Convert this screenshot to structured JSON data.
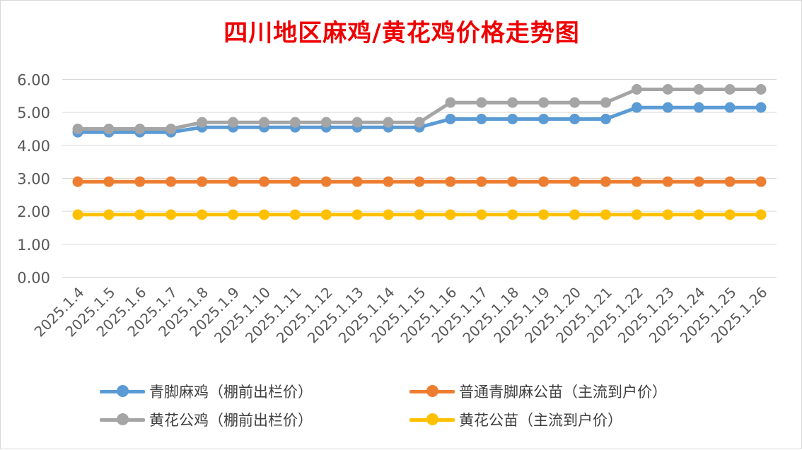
{
  "chart_data": {
    "type": "line",
    "title": "四川地区麻鸡/黄花鸡价格走势图",
    "categories": [
      "2025.1.4",
      "2025.1.5",
      "2025.1.6",
      "2025.1.7",
      "2025.1.8",
      "2025.1.9",
      "2025.1.10",
      "2025.1.11",
      "2025.1.12",
      "2025.1.13",
      "2025.1.14",
      "2025.1.15",
      "2025.1.16",
      "2025.1.17",
      "2025.1.18",
      "2025.1.19",
      "2025.1.20",
      "2025.1.21",
      "2025.1.22",
      "2025.1.23",
      "2025.1.24",
      "2025.1.25",
      "2025.1.26"
    ],
    "yticks": [
      "0.00",
      "1.00",
      "2.00",
      "3.00",
      "4.00",
      "5.00",
      "6.00"
    ],
    "ylim": [
      0,
      6
    ],
    "grid": true,
    "legend_position": "bottom",
    "series": [
      {
        "name": "青脚麻鸡（棚前出栏价）",
        "color": "#5b9bd5",
        "values": [
          4.4,
          4.4,
          4.4,
          4.4,
          4.55,
          4.55,
          4.55,
          4.55,
          4.55,
          4.55,
          4.55,
          4.55,
          4.8,
          4.8,
          4.8,
          4.8,
          4.8,
          4.8,
          5.15,
          5.15,
          5.15,
          5.15,
          5.15
        ]
      },
      {
        "name": "普通青脚麻公苗（主流到户价）",
        "color": "#ed7d31",
        "values": [
          2.9,
          2.9,
          2.9,
          2.9,
          2.9,
          2.9,
          2.9,
          2.9,
          2.9,
          2.9,
          2.9,
          2.9,
          2.9,
          2.9,
          2.9,
          2.9,
          2.9,
          2.9,
          2.9,
          2.9,
          2.9,
          2.9,
          2.9
        ]
      },
      {
        "name": "黄花公鸡（棚前出栏价）",
        "color": "#a5a5a5",
        "values": [
          4.5,
          4.5,
          4.5,
          4.5,
          4.7,
          4.7,
          4.7,
          4.7,
          4.7,
          4.7,
          4.7,
          4.7,
          5.3,
          5.3,
          5.3,
          5.3,
          5.3,
          5.3,
          5.7,
          5.7,
          5.7,
          5.7,
          5.7
        ]
      },
      {
        "name": "黄花公苗（主流到户价）",
        "color": "#ffc000",
        "values": [
          1.9,
          1.9,
          1.9,
          1.9,
          1.9,
          1.9,
          1.9,
          1.9,
          1.9,
          1.9,
          1.9,
          1.9,
          1.9,
          1.9,
          1.9,
          1.9,
          1.9,
          1.9,
          1.9,
          1.9,
          1.9,
          1.9,
          1.9
        ]
      }
    ]
  }
}
